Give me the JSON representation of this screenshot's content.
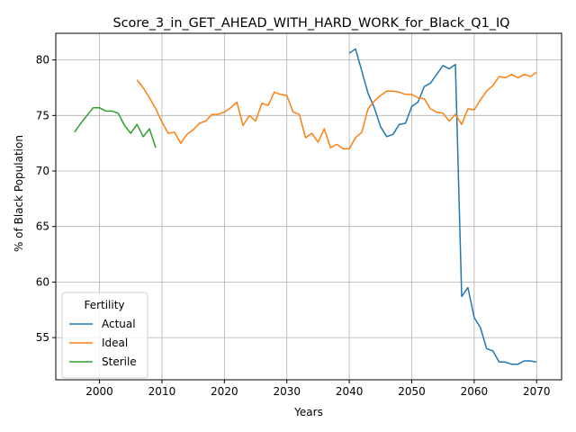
{
  "chart_data": {
    "type": "line",
    "title": "Score_3_in_GET_AHEAD_WITH_HARD_WORK_for_Black_Q1_IQ",
    "xlabel": "Years",
    "ylabel": "% of Black Population",
    "xlim": [
      1993,
      2074
    ],
    "ylim": [
      51.2,
      82.4
    ],
    "xticks": [
      2000,
      2010,
      2020,
      2030,
      2040,
      2050,
      2060,
      2070
    ],
    "yticks": [
      55,
      60,
      65,
      70,
      75,
      80
    ],
    "grid": true,
    "legend": {
      "title": "Fertility",
      "position": "lower-left"
    },
    "series": [
      {
        "name": "Actual",
        "color": "#1f77b4",
        "x": [
          2040,
          2041,
          2042,
          2043,
          2044,
          2045,
          2046,
          2047,
          2048,
          2049,
          2050,
          2051,
          2052,
          2053,
          2054,
          2055,
          2056,
          2057,
          2058,
          2059,
          2060,
          2061,
          2062,
          2063,
          2064,
          2065,
          2066,
          2067,
          2068,
          2069,
          2070
        ],
        "y": [
          80.6,
          81.0,
          79.0,
          77.0,
          75.7,
          74.0,
          73.1,
          73.3,
          74.2,
          74.3,
          75.8,
          76.2,
          77.6,
          77.9,
          78.7,
          79.5,
          79.2,
          79.6,
          58.7,
          59.5,
          56.8,
          55.9,
          54.0,
          53.8,
          52.8,
          52.8,
          52.6,
          52.6,
          52.9,
          52.9,
          52.8
        ]
      },
      {
        "name": "Ideal",
        "color": "#ff7f0e",
        "x": [
          2006,
          2007,
          2008,
          2009,
          2010,
          2011,
          2012,
          2013,
          2014,
          2015,
          2016,
          2017,
          2018,
          2019,
          2020,
          2021,
          2022,
          2023,
          2024,
          2025,
          2026,
          2027,
          2028,
          2029,
          2030,
          2031,
          2032,
          2033,
          2034,
          2035,
          2036,
          2037,
          2038,
          2039,
          2040,
          2041,
          2042,
          2043,
          2044,
          2045,
          2046,
          2047,
          2048,
          2049,
          2050,
          2051,
          2052,
          2053,
          2054,
          2055,
          2056,
          2057,
          2058,
          2059,
          2060,
          2061,
          2062,
          2063,
          2064,
          2065,
          2066,
          2067,
          2068,
          2069,
          2070
        ],
        "y": [
          78.2,
          77.5,
          76.6,
          75.6,
          74.4,
          73.4,
          73.5,
          72.5,
          73.3,
          73.7,
          74.3,
          74.5,
          75.1,
          75.1,
          75.3,
          75.7,
          76.2,
          74.1,
          75.0,
          74.5,
          76.1,
          75.9,
          77.1,
          76.9,
          76.8,
          75.3,
          75.1,
          73.0,
          73.4,
          72.6,
          73.8,
          72.1,
          72.4,
          72.0,
          72.0,
          73.0,
          73.5,
          75.6,
          76.3,
          76.8,
          77.2,
          77.2,
          77.1,
          76.9,
          76.9,
          76.6,
          76.5,
          75.6,
          75.3,
          75.2,
          74.5,
          75.1,
          74.2,
          75.6,
          75.5,
          76.4,
          77.2,
          77.7,
          78.5,
          78.4,
          78.7,
          78.4,
          78.7,
          78.5,
          78.9
        ]
      },
      {
        "name": "Sterile",
        "color": "#2ca02c",
        "x": [
          1996,
          1997,
          1998,
          1999,
          2000,
          2001,
          2002,
          2003,
          2004,
          2005,
          2006,
          2007,
          2008,
          2009
        ],
        "y": [
          73.5,
          74.3,
          75.0,
          75.7,
          75.7,
          75.4,
          75.4,
          75.2,
          74.1,
          73.4,
          74.2,
          73.1,
          73.8,
          72.1
        ]
      }
    ]
  }
}
